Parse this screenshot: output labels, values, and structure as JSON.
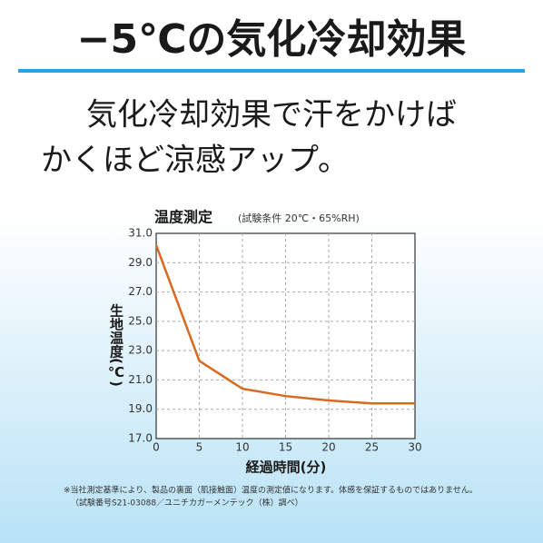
{
  "header": {
    "title": "−5℃の気化冷却効果",
    "lines": [
      "気化冷却効果で汗をかけば",
      "かくほど涼感アップ。"
    ]
  },
  "chart_data": {
    "type": "line",
    "title": "温度測定",
    "subtitle": "(試験条件 20℃・65%RH)",
    "x": [
      0,
      5,
      10,
      15,
      20,
      25,
      30
    ],
    "series": [
      {
        "name": "生地温度",
        "color": "#d9691e",
        "values": [
          30.2,
          22.3,
          20.4,
          19.9,
          19.6,
          19.4,
          19.4
        ]
      }
    ],
    "xlim": [
      0,
      30
    ],
    "xticks": [
      0,
      5,
      10,
      15,
      20,
      25,
      30
    ],
    "ylim": [
      17,
      31
    ],
    "yticks": [
      {
        "value": 17,
        "label": "17.0"
      },
      {
        "value": 19,
        "label": "19.0"
      },
      {
        "value": 21,
        "label": "21.0"
      },
      {
        "value": 23,
        "label": "23.0"
      },
      {
        "value": 25,
        "label": "25.0"
      },
      {
        "value": 27,
        "label": "27.0"
      },
      {
        "value": 29,
        "label": "29.0"
      },
      {
        "value": 31,
        "label": "31.0"
      }
    ],
    "x_label": "経過時間(分)",
    "y_label": "生地温度(℃)",
    "grid": true,
    "notes": [
      "※当社測定基準により、製品の裏面（肌接触面）温度の測定値になります。体感を保証するものではありません。",
      "（試験番号S21-03088／ユニチカガーメンテック（株）調べ）"
    ]
  }
}
